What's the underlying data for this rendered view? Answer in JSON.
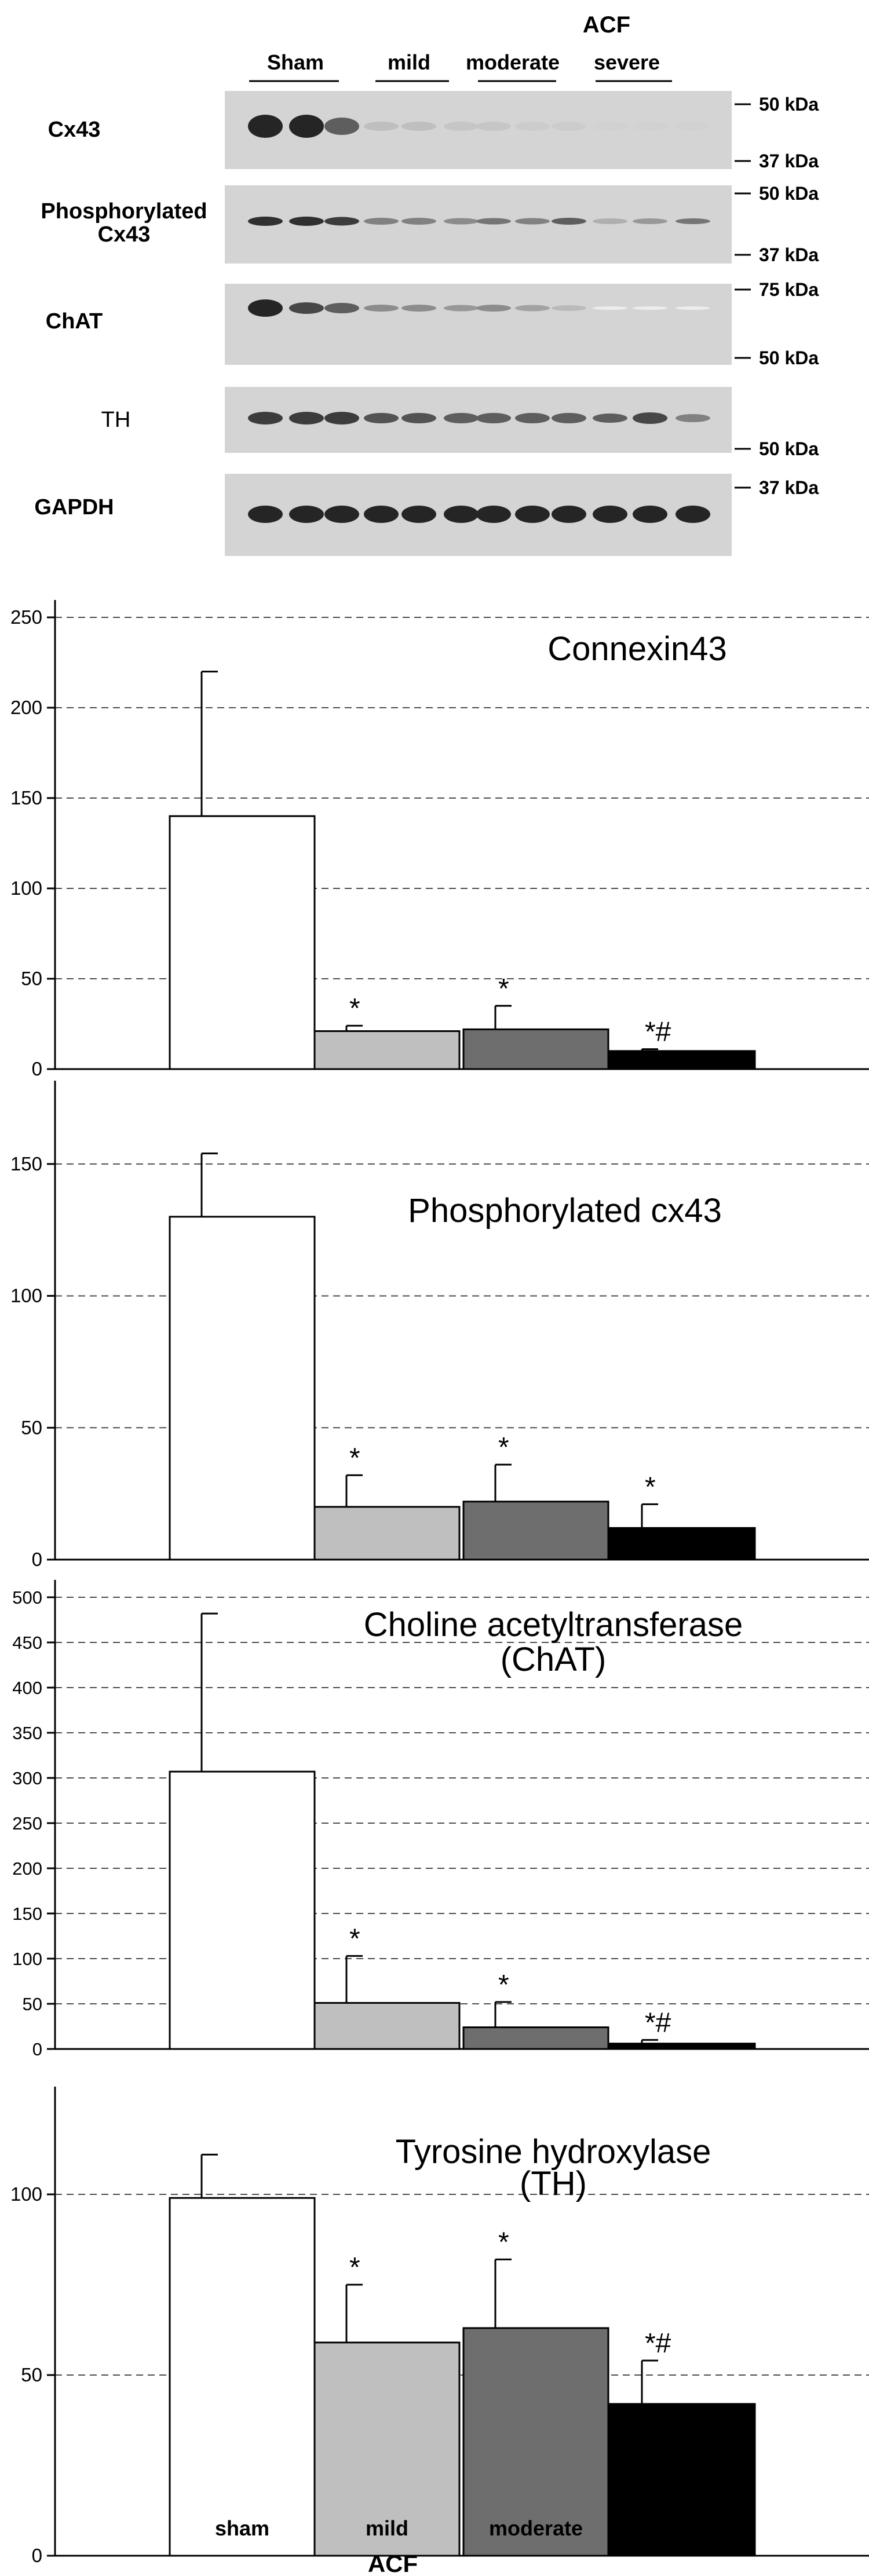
{
  "blot": {
    "group_title": "ACF",
    "groups": [
      "Sham",
      "mild",
      "moderate",
      "severe"
    ],
    "rows": [
      {
        "label": "Cx43",
        "markers": [
          "50 kDa",
          "37 kDa"
        ]
      },
      {
        "label": "Phosphorylated Cx43",
        "markers": [
          "50 kDa",
          "37 kDa"
        ]
      },
      {
        "label": "ChAT",
        "markers": [
          "75 kDa",
          "50 kDa"
        ]
      },
      {
        "label": "TH",
        "markers": [
          "50 kDa"
        ]
      },
      {
        "label": "GAPDH",
        "markers": [
          "37 kDa"
        ]
      }
    ]
  },
  "chart_data": [
    {
      "type": "bar",
      "title": "Connexin43",
      "categories": [
        "sham",
        "mild",
        "moderate",
        "severe"
      ],
      "values": [
        140,
        21,
        22,
        10
      ],
      "errors": [
        80,
        3,
        13,
        1
      ],
      "annotations": [
        "",
        "*",
        "*",
        "*#"
      ],
      "ylim": [
        0,
        250
      ],
      "yticks": [
        0,
        50,
        100,
        150,
        200,
        250
      ],
      "grid": true,
      "bar_colors": [
        "#ffffff",
        "#bfbfbf",
        "#6e6e6e",
        "#000000"
      ]
    },
    {
      "type": "bar",
      "title": "Phosphorylated cx43",
      "categories": [
        "sham",
        "mild",
        "moderate",
        "severe"
      ],
      "values": [
        130,
        20,
        22,
        12
      ],
      "errors": [
        24,
        12,
        14,
        9
      ],
      "annotations": [
        "",
        "*",
        "*",
        "*"
      ],
      "ylim": [
        0,
        175
      ],
      "yticks": [
        0,
        50,
        100,
        150
      ],
      "grid": true,
      "bar_colors": [
        "#ffffff",
        "#bfbfbf",
        "#6e6e6e",
        "#000000"
      ]
    },
    {
      "type": "bar",
      "title": "Choline acetyltransferase (ChAT)",
      "categories": [
        "sham",
        "mild",
        "moderate",
        "severe"
      ],
      "values": [
        307,
        51,
        24,
        6
      ],
      "errors": [
        175,
        52,
        28,
        4
      ],
      "annotations": [
        "",
        "*",
        "*",
        "*#"
      ],
      "ylim": [
        0,
        500
      ],
      "yticks": [
        0,
        50,
        100,
        150,
        200,
        250,
        300,
        350,
        400,
        450,
        500
      ],
      "grid": true,
      "bar_colors": [
        "#ffffff",
        "#bfbfbf",
        "#6e6e6e",
        "#000000"
      ]
    },
    {
      "type": "bar",
      "title": "Tyrosine hydroxylase (TH)",
      "categories": [
        "sham",
        "mild",
        "moderate",
        "severe"
      ],
      "values": [
        99,
        59,
        63,
        42
      ],
      "errors": [
        12,
        16,
        19,
        12
      ],
      "annotations": [
        "",
        "*",
        "*",
        "*#"
      ],
      "ylim": [
        0,
        125
      ],
      "yticks": [
        0,
        50,
        100
      ],
      "grid": true,
      "xlabel": "ACF",
      "bar_colors": [
        "#ffffff",
        "#bfbfbf",
        "#6e6e6e",
        "#000000"
      ]
    }
  ]
}
